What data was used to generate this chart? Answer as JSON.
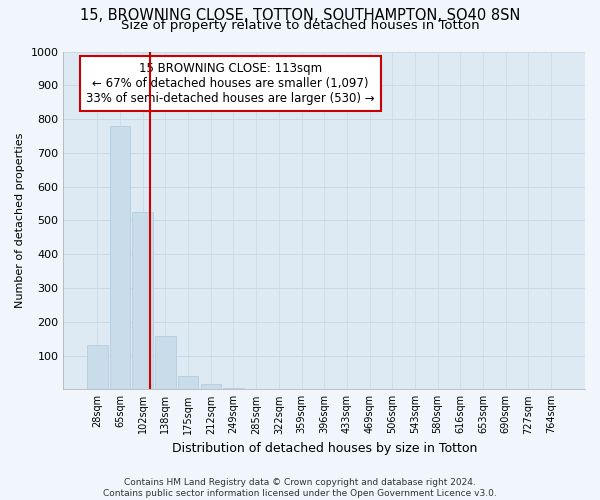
{
  "title": "15, BROWNING CLOSE, TOTTON, SOUTHAMPTON, SO40 8SN",
  "subtitle": "Size of property relative to detached houses in Totton",
  "xlabel": "Distribution of detached houses by size in Totton",
  "ylabel": "Number of detached properties",
  "bar_labels": [
    "28sqm",
    "65sqm",
    "102sqm",
    "138sqm",
    "175sqm",
    "212sqm",
    "249sqm",
    "285sqm",
    "322sqm",
    "359sqm",
    "396sqm",
    "433sqm",
    "469sqm",
    "506sqm",
    "543sqm",
    "580sqm",
    "616sqm",
    "653sqm",
    "690sqm",
    "727sqm",
    "764sqm"
  ],
  "bar_values": [
    130,
    778,
    525,
    158,
    40,
    15,
    5,
    0,
    0,
    0,
    0,
    0,
    0,
    0,
    0,
    0,
    0,
    0,
    0,
    0,
    0
  ],
  "bar_color": "#c8dcea",
  "bar_edgecolor": "#b0c8dc",
  "vline_color": "#cc0000",
  "annotation_text": "15 BROWNING CLOSE: 113sqm\n← 67% of detached houses are smaller (1,097)\n33% of semi-detached houses are larger (530) →",
  "annotation_box_facecolor": "#ffffff",
  "annotation_box_edgecolor": "#cc0000",
  "ylim": [
    0,
    1000
  ],
  "yticks": [
    0,
    100,
    200,
    300,
    400,
    500,
    600,
    700,
    800,
    900,
    1000
  ],
  "grid_color": "#c8d8e4",
  "plot_bg_color": "#ddeaf4",
  "fig_bg_color": "#f0f6fb",
  "footer": "Contains HM Land Registry data © Crown copyright and database right 2024.\nContains public sector information licensed under the Open Government Licence v3.0.",
  "title_fontsize": 10.5,
  "subtitle_fontsize": 9.5,
  "xlabel_fontsize": 9,
  "ylabel_fontsize": 8,
  "annotation_fontsize": 8.5
}
